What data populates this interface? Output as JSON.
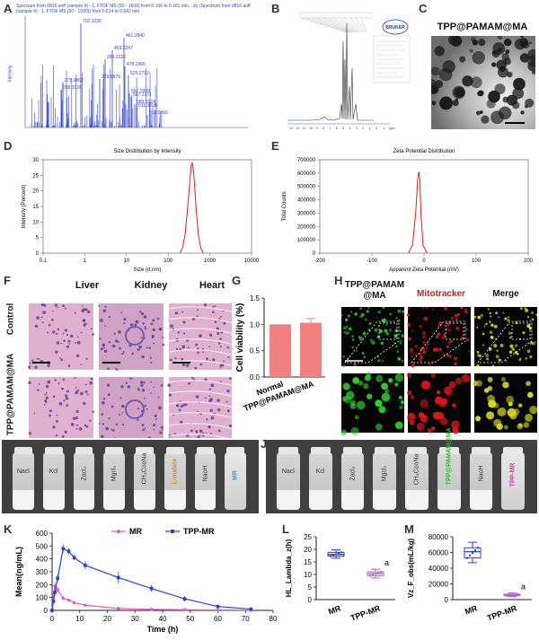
{
  "panels": {
    "A": "A",
    "B": "B",
    "C": "C",
    "D": "D",
    "E": "E",
    "F": "F",
    "G": "G",
    "H": "H",
    "I": "I",
    "J": "J",
    "K": "K",
    "L": "L",
    "M": "M"
  },
  "panel_a": {
    "header_line": "Spectrum from 0816 anff (sample 4) - 1, FTOF MS (50 - 1500) from 0.106 to 0.181 min, ..by (Spectrum from 0816 anff (sample 4) - 1, FTOF MS (50 - 1500)) from 0.614 to 0.642 min",
    "ylabel": "Intensity",
    "peak_labels": [
      "702.1036",
      "461.2840",
      "403.2247",
      "393.2232",
      "478.2495",
      "525.2712",
      "329.8879",
      "278.0862",
      "258.1028",
      "565.2993",
      "567.2271",
      "589.3124",
      "611.3208",
      "813.0866"
    ]
  },
  "panel_b": {
    "logo": "BRUKER",
    "x_ticks": [
      "13",
      "12",
      "11",
      "10",
      "9",
      "8",
      "7",
      "6",
      "5",
      "4",
      "3",
      "2",
      "1",
      "0",
      "-1",
      "ppm"
    ]
  },
  "panel_c": {
    "title": "TPP@PAMAM@MA"
  },
  "chart_data": [
    {
      "type": "line",
      "panel": "D",
      "title": "Size Distribution by Intensity",
      "xlabel": "Size (d.nm)",
      "ylabel": "Intensity (Percent)",
      "xscale": "log",
      "xlim": [
        0.1,
        10000
      ],
      "ylim": [
        0,
        30
      ],
      "x_ticks": [
        "0.1",
        "1",
        "10",
        "100",
        "1000",
        "10000"
      ],
      "y_ticks": [
        "0",
        "5",
        "10",
        "15",
        "20",
        "25",
        "30"
      ],
      "x": [
        190,
        220,
        255,
        295,
        340,
        360,
        380,
        400,
        430,
        470,
        530,
        610,
        700
      ],
      "y": [
        0,
        1.5,
        6,
        15,
        25,
        28.5,
        29,
        27,
        22,
        14,
        6,
        1.5,
        0
      ]
    },
    {
      "type": "line",
      "panel": "E",
      "title": "Zeta Potential Distribution",
      "xlabel": "Apparent Zeta Potential (mV)",
      "ylabel": "Total Counts",
      "xlim": [
        -200,
        200
      ],
      "ylim": [
        0,
        700000
      ],
      "x_ticks": [
        "-200",
        "-100",
        "0",
        "100",
        "200"
      ],
      "y_ticks": [
        "0",
        "100000",
        "200000",
        "300000",
        "400000",
        "500000",
        "600000",
        "700000"
      ],
      "x": [
        -30,
        -22,
        -16,
        -12,
        -10,
        -8,
        -6,
        -2,
        6
      ],
      "y": [
        0,
        60000,
        300000,
        560000,
        610000,
        560000,
        300000,
        60000,
        0
      ]
    },
    {
      "type": "bar",
      "panel": "G",
      "categories": [
        "Normal",
        "TPP@PAMAM@MA"
      ],
      "values": [
        1.0,
        1.03
      ],
      "errors": [
        0,
        0.08
      ],
      "ylabel": "Cell viability (%)",
      "ylim": [
        0,
        1.5
      ],
      "y_ticks": [
        "0.0",
        "0.5",
        "1.0",
        "1.5"
      ],
      "color": "#f28080"
    },
    {
      "type": "line",
      "panel": "K",
      "xlabel": "Time (h)",
      "ylabel": "Mean(ng/mL)",
      "xlim": [
        0,
        80
      ],
      "ylim": [
        0,
        600
      ],
      "x_ticks": [
        "0",
        "10",
        "20",
        "30",
        "40",
        "50",
        "60",
        "70",
        "80"
      ],
      "y_ticks": [
        "0",
        "100",
        "200",
        "300",
        "400",
        "500",
        "600"
      ],
      "series": [
        {
          "name": "MR",
          "color": "#e05cc9",
          "x": [
            0,
            0.5,
            1,
            2,
            4,
            6,
            8,
            12,
            24,
            36,
            48,
            60,
            72
          ],
          "y": [
            0,
            120,
            190,
            160,
            95,
            80,
            60,
            40,
            15,
            8,
            5,
            3,
            2
          ],
          "err": [
            0,
            20,
            30,
            25,
            15,
            10,
            8,
            6,
            4,
            3,
            2,
            1,
            1
          ]
        },
        {
          "name": "TPP-MR",
          "color": "#2a3fd6",
          "x": [
            0,
            0.5,
            1,
            2,
            4,
            6,
            8,
            12,
            24,
            36,
            48,
            60,
            72
          ],
          "y": [
            0,
            70,
            140,
            250,
            480,
            460,
            410,
            350,
            255,
            170,
            90,
            30,
            10
          ],
          "err": [
            0,
            10,
            20,
            30,
            30,
            25,
            20,
            30,
            45,
            25,
            20,
            8,
            4
          ]
        }
      ]
    },
    {
      "type": "box",
      "panel": "L",
      "categories": [
        "MR",
        "TPP-MR"
      ],
      "ylabel": "HL_Lambda_z(h)",
      "ylim": [
        0,
        25
      ],
      "y_ticks": [
        "0",
        "5",
        "10",
        "15",
        "20",
        "25"
      ],
      "boxes": [
        {
          "min": 16.5,
          "q1": 17.3,
          "median": 18.0,
          "q3": 18.8,
          "max": 19.8,
          "color": "#2a3fd6"
        },
        {
          "min": 8.6,
          "q1": 9.5,
          "median": 10.3,
          "q3": 11.0,
          "max": 12.1,
          "color": "#b064d6"
        }
      ],
      "annotation": "a"
    },
    {
      "type": "box",
      "panel": "M",
      "categories": [
        "MR",
        "TPP-MR"
      ],
      "ylabel": "Vz_F_obs(mL/kg)",
      "ylim": [
        0,
        80000
      ],
      "y_ticks": [
        "0",
        "20000",
        "40000",
        "60000",
        "80000"
      ],
      "boxes": [
        {
          "min": 47000,
          "q1": 53000,
          "median": 61000,
          "q3": 66000,
          "max": 73000,
          "color": "#2a3fd6"
        },
        {
          "min": 4000,
          "q1": 5000,
          "median": 6000,
          "q3": 7000,
          "max": 8500,
          "color": "#b064d6"
        }
      ],
      "annotation": "a"
    }
  ],
  "panel_f": {
    "columns": [
      "Liver",
      "Kidney",
      "Heart"
    ],
    "rows": [
      "Control",
      "TPP@PAMAM@MA"
    ]
  },
  "panel_h": {
    "columns": [
      "TPP@PAMAM @MA",
      "Mitotracker",
      "Merge"
    ],
    "column_colors": [
      "#111111",
      "#c81e1e",
      "#111111"
    ]
  },
  "panel_i": {
    "bottles": [
      "Nacl",
      "Kcl",
      "Zacl₂",
      "Mgcl₂",
      "CH₃CooNa",
      "L-malate",
      "NaoH",
      "MR"
    ]
  },
  "panel_j": {
    "bottles": [
      "Nacl",
      "Kcl",
      "Zacl₂",
      "Mgcl₂",
      "CH₃CooNa",
      "TPP@PAMAM@MA",
      "NaoH",
      "TPP-MR"
    ]
  }
}
